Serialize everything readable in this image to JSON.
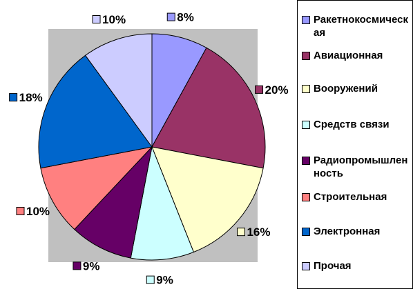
{
  "chart_data": {
    "type": "pie",
    "categories": [
      "Ракетнокосмическая",
      "Авиационная",
      "Вооружений",
      "Средств связи",
      "Радиопромышленность",
      "Строительная",
      "Электронная",
      "Прочая"
    ],
    "values": [
      8,
      20,
      16,
      9,
      9,
      10,
      18,
      10
    ],
    "value_labels": [
      "8%",
      "20%",
      "16%",
      "9%",
      "9%",
      "10%",
      "18%",
      "10%"
    ],
    "colors": [
      "#9999ff",
      "#993366",
      "#ffffcc",
      "#ccffff",
      "#660066",
      "#ff8080",
      "#0066cc",
      "#ccccff"
    ],
    "legend": "right"
  }
}
